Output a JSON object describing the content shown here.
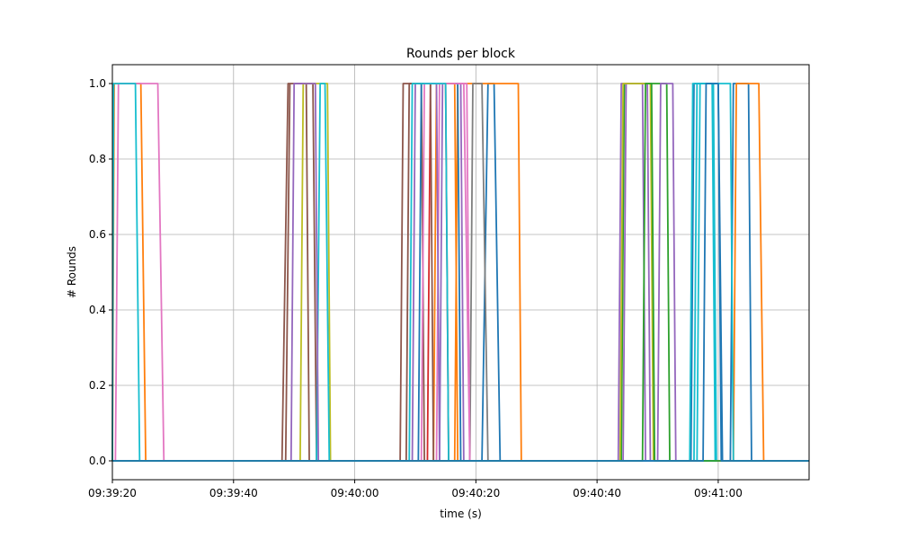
{
  "chart_data": {
    "type": "line",
    "title": "Rounds per block",
    "xlabel": "time (s)",
    "ylabel": "# Rounds",
    "x_unit": "seconds since 09:39:20",
    "xlim": [
      0,
      115
    ],
    "ylim": [
      -0.05,
      1.05
    ],
    "x_ticks": [
      {
        "value": 0,
        "label": "09:39:20"
      },
      {
        "value": 20,
        "label": "09:39:40"
      },
      {
        "value": 40,
        "label": "09:40:00"
      },
      {
        "value": 60,
        "label": "09:40:20"
      },
      {
        "value": 80,
        "label": "09:40:40"
      },
      {
        "value": 100,
        "label": "09:41:00"
      }
    ],
    "y_ticks": [
      {
        "value": 0.0,
        "label": "0.0"
      },
      {
        "value": 0.2,
        "label": "0.2"
      },
      {
        "value": 0.4,
        "label": "0.4"
      },
      {
        "value": 0.6,
        "label": "0.6"
      },
      {
        "value": 0.8,
        "label": "0.8"
      },
      {
        "value": 1.0,
        "label": "1.0"
      }
    ],
    "grid": true,
    "legend": "none",
    "series": [
      {
        "color": "#1f77b4",
        "pulses": [
          [
            61.0,
            62.0,
            63.0,
            64.0
          ],
          [
            102.0,
            102.5,
            105.0,
            105.5
          ]
        ]
      },
      {
        "color": "#ff7f0e",
        "pulses": [
          [
            0.0,
            0.3,
            4.7,
            5.5
          ],
          [
            56.5,
            57.0,
            67.0,
            67.5
          ],
          [
            102.5,
            103.0,
            106.7,
            107.5
          ]
        ]
      },
      {
        "color": "#2ca02c",
        "pulses": [
          [
            84.0,
            84.5,
            91.5,
            92.0
          ]
        ]
      },
      {
        "color": "#d62728",
        "pulses": [
          [
            52.0,
            52.5,
            55.0,
            55.5
          ]
        ]
      },
      {
        "color": "#9467bd",
        "pulses": [
          [
            83.5,
            84.0,
            87.5,
            88.0
          ],
          [
            84.3,
            84.8,
            88.3,
            88.8
          ],
          [
            54.0,
            54.5,
            57.5,
            58.0
          ]
        ]
      },
      {
        "color": "#8c564b",
        "pulses": [
          [
            28.0,
            29.0,
            32.0,
            32.5
          ],
          [
            28.6,
            29.3,
            33.1,
            33.7
          ],
          [
            47.5,
            48.0,
            51.0,
            51.5
          ]
        ]
      },
      {
        "color": "#e377c2",
        "pulses": [
          [
            0.5,
            1.0,
            7.5,
            8.5
          ],
          [
            53.5,
            54.0,
            58.0,
            59.0
          ]
        ]
      },
      {
        "color": "#7f7f7f",
        "pulses": [
          [
            59.0,
            59.5,
            61.0,
            62.0
          ]
        ]
      },
      {
        "color": "#bcbd22",
        "pulses": [
          [
            31.0,
            31.5,
            35.5,
            36.0
          ],
          [
            83.8,
            84.3,
            88.8,
            89.3
          ]
        ]
      },
      {
        "color": "#17becf",
        "pulses": [
          [
            0.0,
            0.2,
            3.8,
            4.5
          ],
          [
            33.7,
            34.3,
            35.1,
            35.8
          ],
          [
            96.0,
            96.5,
            99.0,
            99.5
          ]
        ]
      },
      {
        "color": "#1f77b4",
        "pulses": [
          [
            50.5,
            51.0,
            57.0,
            57.5
          ],
          [
            95.5,
            96.0,
            100.0,
            100.7
          ]
        ]
      },
      {
        "color": "#ff7f0e",
        "pulses": [
          [
            53.0,
            53.5,
            56.5,
            57.0
          ]
        ]
      },
      {
        "color": "#9467bd",
        "pulses": [
          [
            29.5,
            30.0,
            33.5,
            34.0
          ],
          [
            49.5,
            50.0,
            53.5,
            54.0
          ],
          [
            90.0,
            90.5,
            92.5,
            93.0
          ]
        ]
      },
      {
        "color": "#8c564b",
        "pulses": [
          [
            48.5,
            49.0,
            52.5,
            53.0
          ]
        ]
      },
      {
        "color": "#e377c2",
        "pulses": [
          [
            51.0,
            51.5,
            58.5,
            59.0
          ]
        ]
      },
      {
        "color": "#17becf",
        "pulses": [
          [
            49.0,
            49.5,
            55.0,
            55.5
          ],
          [
            95.3,
            95.8,
            99.2,
            99.7
          ],
          [
            96.5,
            97.0,
            102.0,
            102.5
          ]
        ]
      },
      {
        "color": "#2ca02c",
        "pulses": [
          [
            87.5,
            88.0,
            89.0,
            89.5
          ]
        ]
      },
      {
        "color": "#1f77b4",
        "pulses": [
          [
            97.5,
            98.0,
            100.0,
            100.5
          ]
        ]
      }
    ]
  }
}
